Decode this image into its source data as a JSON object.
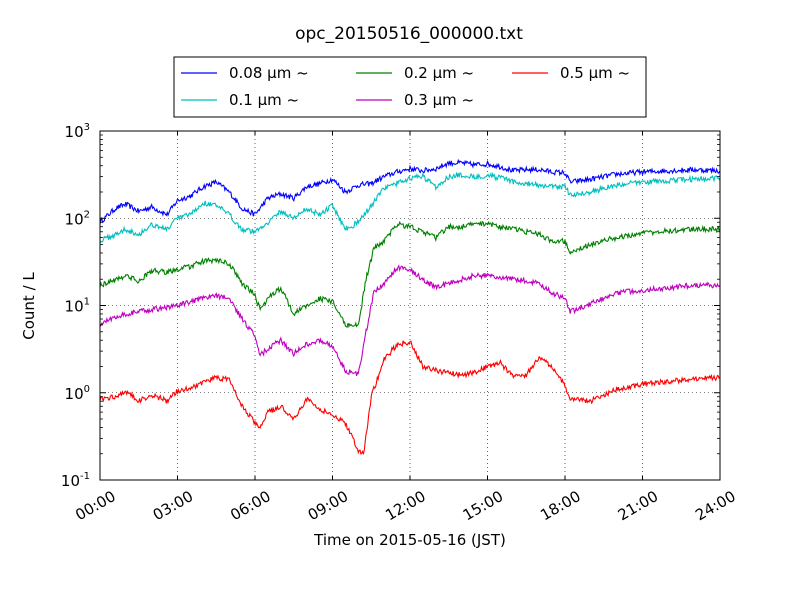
{
  "chart_data": {
    "type": "line",
    "title": "opc_20150516_000000.txt",
    "xlabel": "Time on 2015-05-16 (JST)",
    "ylabel": "Count / L",
    "x_unit": "hours",
    "xlim": [
      0,
      24
    ],
    "ylim": [
      0.1,
      1000
    ],
    "y_scale": "log",
    "grid": true,
    "grid_style": "dotted",
    "legend_position": "top-center",
    "x_ticks": [
      {
        "value": 0,
        "label": "00:00"
      },
      {
        "value": 3,
        "label": "03:00"
      },
      {
        "value": 6,
        "label": "06:00"
      },
      {
        "value": 9,
        "label": "09:00"
      },
      {
        "value": 12,
        "label": "12:00"
      },
      {
        "value": 15,
        "label": "15:00"
      },
      {
        "value": 18,
        "label": "18:00"
      },
      {
        "value": 21,
        "label": "21:00"
      },
      {
        "value": 24,
        "label": "24:00"
      }
    ],
    "y_ticks": [
      {
        "value": 0.1,
        "label": "10",
        "exp": "-1"
      },
      {
        "value": 1,
        "label": "10",
        "exp": "0"
      },
      {
        "value": 10,
        "label": "10",
        "exp": "1"
      },
      {
        "value": 100,
        "label": "10",
        "exp": "2"
      },
      {
        "value": 1000,
        "label": "10",
        "exp": "3"
      }
    ],
    "series": [
      {
        "name": "0.08 μm ~",
        "color": "#0000ff",
        "points": [
          [
            0,
            90
          ],
          [
            0.6,
            130
          ],
          [
            1,
            145
          ],
          [
            1.5,
            120
          ],
          [
            2,
            135
          ],
          [
            2.6,
            110
          ],
          [
            3,
            160
          ],
          [
            3.5,
            180
          ],
          [
            4,
            230
          ],
          [
            4.5,
            260
          ],
          [
            5,
            200
          ],
          [
            5.5,
            130
          ],
          [
            6,
            110
          ],
          [
            6.5,
            170
          ],
          [
            7,
            190
          ],
          [
            7.5,
            170
          ],
          [
            8,
            230
          ],
          [
            8.5,
            250
          ],
          [
            9,
            280
          ],
          [
            9.5,
            200
          ],
          [
            10,
            240
          ],
          [
            10.5,
            250
          ],
          [
            11,
            300
          ],
          [
            11.5,
            340
          ],
          [
            12,
            370
          ],
          [
            12.5,
            350
          ],
          [
            13,
            370
          ],
          [
            13.5,
            430
          ],
          [
            14,
            430
          ],
          [
            14.5,
            410
          ],
          [
            15,
            420
          ],
          [
            15.5,
            390
          ],
          [
            16,
            350
          ],
          [
            16.5,
            360
          ],
          [
            17,
            360
          ],
          [
            17.5,
            340
          ],
          [
            18,
            330
          ],
          [
            18.2,
            260
          ],
          [
            19,
            280
          ],
          [
            19.5,
            300
          ],
          [
            20,
            320
          ],
          [
            21,
            340
          ],
          [
            22,
            350
          ],
          [
            23,
            360
          ],
          [
            24,
            350
          ]
        ]
      },
      {
        "name": "0.1 μm ~",
        "color": "#00bfbf",
        "points": [
          [
            0,
            55
          ],
          [
            0.6,
            65
          ],
          [
            1,
            75
          ],
          [
            1.5,
            65
          ],
          [
            2,
            85
          ],
          [
            2.6,
            75
          ],
          [
            3,
            100
          ],
          [
            3.5,
            110
          ],
          [
            4,
            150
          ],
          [
            4.5,
            140
          ],
          [
            5,
            110
          ],
          [
            5.5,
            75
          ],
          [
            6,
            70
          ],
          [
            6.5,
            90
          ],
          [
            7,
            120
          ],
          [
            7.5,
            100
          ],
          [
            8,
            130
          ],
          [
            8.5,
            110
          ],
          [
            9,
            140
          ],
          [
            9.5,
            75
          ],
          [
            10,
            90
          ],
          [
            10.5,
            140
          ],
          [
            11,
            220
          ],
          [
            11.5,
            250
          ],
          [
            12,
            290
          ],
          [
            12.5,
            300
          ],
          [
            13,
            230
          ],
          [
            13.5,
            300
          ],
          [
            14,
            310
          ],
          [
            14.5,
            300
          ],
          [
            15,
            310
          ],
          [
            15.5,
            290
          ],
          [
            16,
            260
          ],
          [
            16.5,
            250
          ],
          [
            17,
            240
          ],
          [
            17.5,
            230
          ],
          [
            18,
            230
          ],
          [
            18.2,
            185
          ],
          [
            19,
            200
          ],
          [
            19.5,
            220
          ],
          [
            20,
            240
          ],
          [
            21,
            260
          ],
          [
            22,
            270
          ],
          [
            23,
            280
          ],
          [
            24,
            290
          ]
        ]
      },
      {
        "name": "0.2 μm ~",
        "color": "#008000",
        "points": [
          [
            0,
            17
          ],
          [
            0.6,
            20
          ],
          [
            1,
            22
          ],
          [
            1.5,
            19
          ],
          [
            2,
            25
          ],
          [
            2.6,
            24
          ],
          [
            3,
            26
          ],
          [
            3.5,
            28
          ],
          [
            4,
            32
          ],
          [
            4.5,
            33
          ],
          [
            5,
            30
          ],
          [
            5.5,
            18
          ],
          [
            6,
            13
          ],
          [
            6.2,
            9
          ],
          [
            6.5,
            12
          ],
          [
            7,
            16
          ],
          [
            7.5,
            8
          ],
          [
            8,
            10
          ],
          [
            8.5,
            12
          ],
          [
            9,
            11
          ],
          [
            9.5,
            6
          ],
          [
            10,
            6
          ],
          [
            10.3,
            20
          ],
          [
            10.6,
            45
          ],
          [
            11,
            55
          ],
          [
            11.5,
            85
          ],
          [
            12,
            80
          ],
          [
            12.5,
            70
          ],
          [
            13,
            60
          ],
          [
            13.5,
            80
          ],
          [
            14,
            80
          ],
          [
            14.5,
            85
          ],
          [
            15,
            88
          ],
          [
            15.5,
            80
          ],
          [
            16,
            75
          ],
          [
            16.5,
            70
          ],
          [
            17,
            65
          ],
          [
            17.5,
            55
          ],
          [
            18,
            55
          ],
          [
            18.2,
            42
          ],
          [
            19,
            50
          ],
          [
            19.5,
            55
          ],
          [
            20,
            60
          ],
          [
            21,
            68
          ],
          [
            22,
            72
          ],
          [
            23,
            75
          ],
          [
            24,
            75
          ]
        ]
      },
      {
        "name": "0.3 μm ~",
        "color": "#bf00bf",
        "points": [
          [
            0,
            6
          ],
          [
            0.6,
            7.5
          ],
          [
            1,
            8
          ],
          [
            1.5,
            8.5
          ],
          [
            2,
            9
          ],
          [
            2.6,
            9.5
          ],
          [
            3,
            10
          ],
          [
            3.5,
            11
          ],
          [
            4,
            12
          ],
          [
            4.5,
            13
          ],
          [
            5,
            12
          ],
          [
            5.5,
            7
          ],
          [
            6,
            4.5
          ],
          [
            6.2,
            2.7
          ],
          [
            6.5,
            3.2
          ],
          [
            7,
            4
          ],
          [
            7.5,
            2.8
          ],
          [
            8,
            3.6
          ],
          [
            8.5,
            4
          ],
          [
            9,
            3.4
          ],
          [
            9.5,
            1.8
          ],
          [
            10,
            1.6
          ],
          [
            10.3,
            5
          ],
          [
            10.6,
            14
          ],
          [
            11,
            18
          ],
          [
            11.5,
            27
          ],
          [
            12,
            26
          ],
          [
            12.5,
            20
          ],
          [
            13,
            16
          ],
          [
            13.5,
            18
          ],
          [
            14,
            20
          ],
          [
            14.5,
            22
          ],
          [
            15,
            22
          ],
          [
            15.5,
            21
          ],
          [
            16,
            20
          ],
          [
            16.5,
            19
          ],
          [
            17,
            18
          ],
          [
            17.5,
            14
          ],
          [
            18,
            12
          ],
          [
            18.2,
            8.5
          ],
          [
            19,
            10.5
          ],
          [
            19.5,
            12
          ],
          [
            20,
            14
          ],
          [
            21,
            15
          ],
          [
            22,
            16
          ],
          [
            23,
            17
          ],
          [
            24,
            17
          ]
        ]
      },
      {
        "name": "0.5 μm ~",
        "color": "#ff0000",
        "points": [
          [
            0,
            0.85
          ],
          [
            0.6,
            0.9
          ],
          [
            1,
            1.05
          ],
          [
            1.5,
            0.8
          ],
          [
            2,
            0.95
          ],
          [
            2.6,
            0.8
          ],
          [
            3,
            1.05
          ],
          [
            3.5,
            1.15
          ],
          [
            4,
            1.3
          ],
          [
            4.5,
            1.5
          ],
          [
            5,
            1.4
          ],
          [
            5.5,
            0.7
          ],
          [
            6,
            0.45
          ],
          [
            6.2,
            0.4
          ],
          [
            6.5,
            0.6
          ],
          [
            7,
            0.7
          ],
          [
            7.5,
            0.5
          ],
          [
            8,
            0.85
          ],
          [
            8.5,
            0.65
          ],
          [
            9,
            0.55
          ],
          [
            9.5,
            0.45
          ],
          [
            10,
            0.22
          ],
          [
            10.2,
            0.2
          ],
          [
            10.5,
            0.9
          ],
          [
            11,
            2.4
          ],
          [
            11.5,
            3.6
          ],
          [
            12,
            3.8
          ],
          [
            12.5,
            2
          ],
          [
            13,
            1.8
          ],
          [
            13.5,
            1.7
          ],
          [
            14,
            1.6
          ],
          [
            14.5,
            1.7
          ],
          [
            15,
            2.0
          ],
          [
            15.5,
            2.2
          ],
          [
            16,
            1.5
          ],
          [
            16.5,
            1.6
          ],
          [
            17,
            2.5
          ],
          [
            17.5,
            2.0
          ],
          [
            18,
            1.2
          ],
          [
            18.2,
            0.85
          ],
          [
            19,
            0.8
          ],
          [
            19.5,
            0.95
          ],
          [
            20,
            1.1
          ],
          [
            21,
            1.25
          ],
          [
            22,
            1.35
          ],
          [
            23,
            1.45
          ],
          [
            24,
            1.5
          ]
        ]
      }
    ]
  }
}
